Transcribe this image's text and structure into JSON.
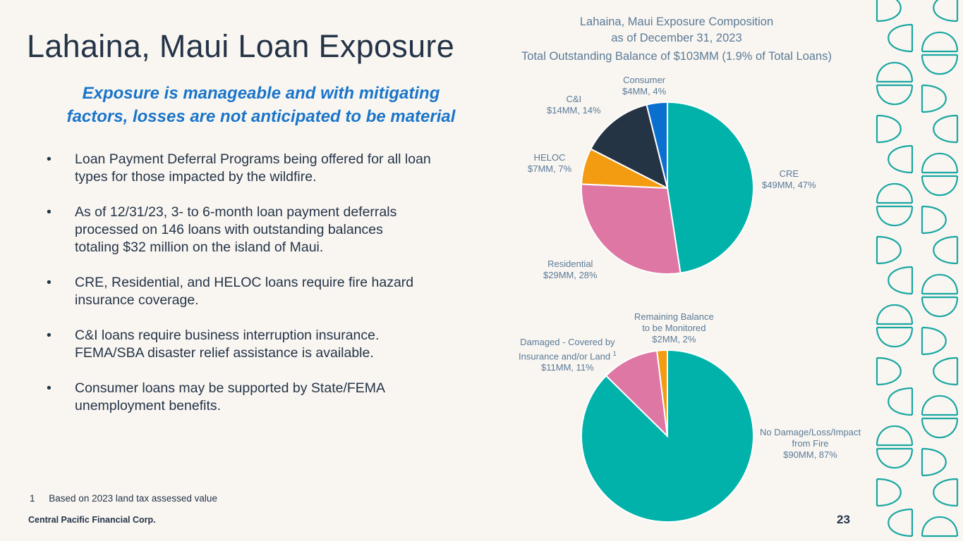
{
  "slide": {
    "title": "Lahaina, Maui Loan Exposure",
    "subtitle_line1": "Exposure is manageable and with mitigating",
    "subtitle_line2": "factors, losses are not anticipated to be material",
    "bullet_marker": "•",
    "bullets": [
      [
        "Loan Payment Deferral Programs being offered for all loan",
        "types for those impacted by the wildfire."
      ],
      [
        "As of 12/31/23, 3- to 6-month loan payment deferrals",
        "processed on 146 loans with outstanding balances",
        "totaling $32 million on the island of Maui."
      ],
      [
        "CRE, Residential, and HELOC loans require fire hazard",
        "insurance coverage."
      ],
      [
        "C&I loans require business interruption insurance.",
        "FEMA/SBA disaster relief assistance is available."
      ],
      [
        "Consumer loans may be supported by State/FEMA",
        "unemployment benefits."
      ]
    ],
    "footnote_number": "1",
    "footnote_text": "Based on 2023 land tax assessed value",
    "company": "Central Pacific Financial Corp.",
    "page_number": "23"
  },
  "chart_header": {
    "line1": "Lahaina, Maui Exposure Composition",
    "line2": "as of December 31, 2023",
    "total": "Total Outstanding Balance of $103MM (1.9% of Total Loans)"
  },
  "chart_data": [
    {
      "type": "pie",
      "categories": [
        "CRE",
        "Residential",
        "HELOC",
        "C&I",
        "Consumer"
      ],
      "values": [
        49,
        29,
        7,
        14,
        4
      ],
      "units": "$MM",
      "percent_labels": [
        "47%",
        "28%",
        "7%",
        "14%",
        "4%"
      ],
      "value_labels": [
        "$49MM, 47%",
        "$29MM, 28%",
        "$7MM, 7%",
        "$14MM, 14%",
        "$4MM, 4%"
      ],
      "colors": [
        "#00b2a9",
        "#de77a3",
        "#f39c12",
        "#253444",
        "#0a6fcf"
      ]
    },
    {
      "type": "pie",
      "categories": [
        "No Damage/Loss/Impact from Fire",
        "Damaged - Covered by Insurance and/or Land",
        "Remaining Balance to be Monitored"
      ],
      "label_lines": [
        [
          "No Damage/Loss/Impact",
          "from Fire"
        ],
        [
          "Damaged - Covered by",
          "Insurance and/or Land"
        ],
        [
          "Remaining Balance",
          "to be Monitored"
        ]
      ],
      "footnote_marks": [
        "",
        "1",
        ""
      ],
      "values": [
        90,
        11,
        2
      ],
      "units": "$MM",
      "value_labels": [
        "$90MM, 87%",
        "$11MM, 11%",
        "$2MM, 2%"
      ],
      "colors": [
        "#00b2a9",
        "#de77a3",
        "#f39c12"
      ]
    }
  ],
  "colors": {
    "background": "#f9f6f2",
    "title_text": "#243447",
    "accent_blue": "#1a75c9",
    "label_text": "#5a7a96",
    "decor_teal": "#1aa7a0"
  }
}
